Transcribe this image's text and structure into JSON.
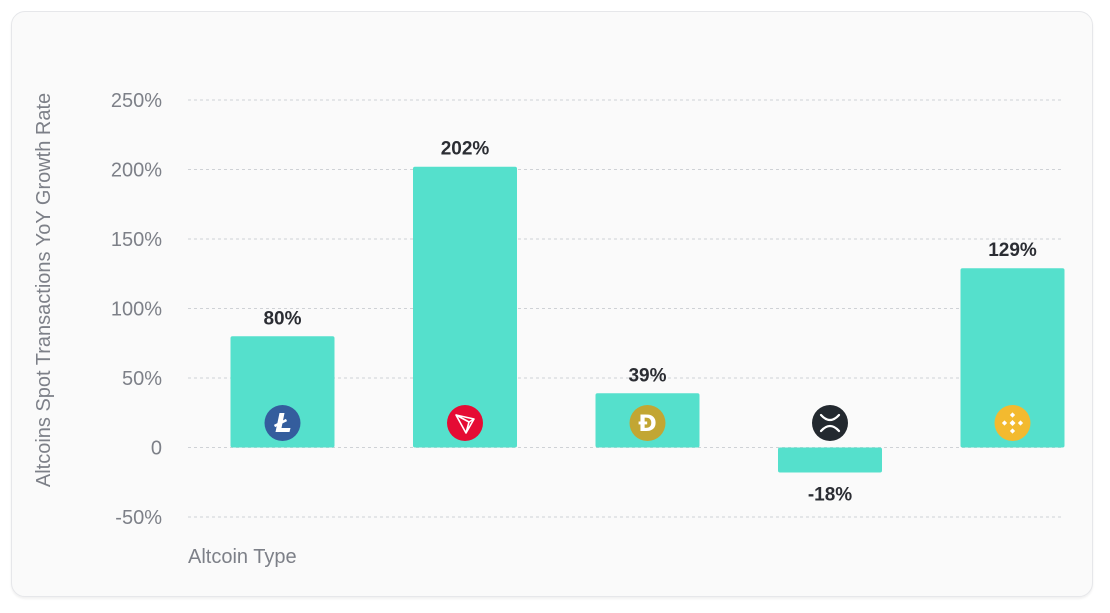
{
  "chart_data": {
    "type": "bar",
    "categories": [
      "Litecoin",
      "TRON",
      "Dogecoin",
      "XRP",
      "BNB"
    ],
    "values": [
      80,
      202,
      39,
      -18,
      129
    ],
    "value_labels": [
      "80%",
      "202%",
      "39%",
      "-18%",
      "129%"
    ],
    "icons": [
      "litecoin-icon",
      "tron-icon",
      "dogecoin-icon",
      "xrp-icon",
      "bnb-icon"
    ],
    "icon_colors": [
      "#345d9d",
      "#e50c34",
      "#c2a633",
      "#23292f",
      "#f3ba2f"
    ],
    "ylabel": "Altcoins Spot Transactions YoY Growth Rate",
    "xlabel": "Altcoin Type",
    "ylim": [
      -50,
      250
    ],
    "yticks": [
      250,
      200,
      150,
      100,
      50,
      0,
      -50
    ],
    "ytick_labels": [
      "250%",
      "200%",
      "150%",
      "100%",
      "50%",
      "0",
      "-50%"
    ],
    "grid": true,
    "bar_color": "#55e0cc"
  }
}
